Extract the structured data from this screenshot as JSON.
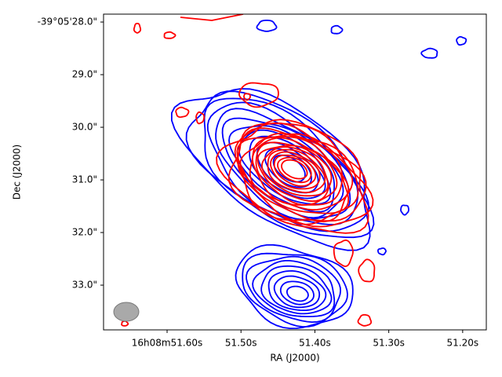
{
  "chart_data": {
    "type": "contour",
    "xlabel": "RA (J2000)",
    "ylabel": "Dec (J2000)",
    "xlim": [
      51.686,
      51.168
    ],
    "ylim": [
      33.85,
      27.85
    ],
    "xticks": [
      {
        "value": 51.6,
        "label": "16h08m51.60s"
      },
      {
        "value": 51.5,
        "label": "51.50s"
      },
      {
        "value": 51.4,
        "label": "51.40s"
      },
      {
        "value": 51.3,
        "label": "51.30s"
      },
      {
        "value": 51.2,
        "label": "51.20s"
      }
    ],
    "yticks": [
      {
        "value": 28,
        "label": "-39°05'28.0\""
      },
      {
        "value": 29,
        "label": "29.0\""
      },
      {
        "value": 30,
        "label": "30.0\""
      },
      {
        "value": 31,
        "label": "31.0\""
      },
      {
        "value": 32,
        "label": "32.0\""
      },
      {
        "value": 33,
        "label": "33.0\""
      }
    ]
  }
}
